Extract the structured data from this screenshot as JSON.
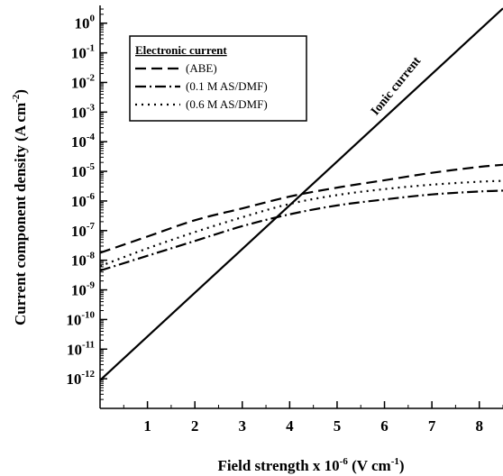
{
  "chart_data": {
    "type": "line",
    "xlabel": {
      "base": "Field strength x 10",
      "exp": "-6",
      "unit": " (V cm",
      "unit_exp": "-1",
      "close": ")"
    },
    "ylabel": {
      "base": "Current component density (A cm",
      "exp": "-2",
      "close": ")"
    },
    "x_ticks": [
      1,
      2,
      3,
      4,
      5,
      6,
      7,
      8
    ],
    "y_ticks": [
      {
        "base": "10",
        "exp": "0",
        "value": 0
      },
      {
        "base": "10",
        "exp": "-1",
        "value": -1
      },
      {
        "base": "10",
        "exp": "-2",
        "value": -2
      },
      {
        "base": "10",
        "exp": "-3",
        "value": -3
      },
      {
        "base": "10",
        "exp": "-4",
        "value": -4
      },
      {
        "base": "10",
        "exp": "-5",
        "value": -5
      },
      {
        "base": "10",
        "exp": "-6",
        "value": -6
      },
      {
        "base": "10",
        "exp": "-7",
        "value": -7
      },
      {
        "base": "10",
        "exp": "-8",
        "value": -8
      },
      {
        "base": "10",
        "exp": "-9",
        "value": -9
      },
      {
        "base": "10",
        "exp": "-10",
        "value": -10
      },
      {
        "base": "10",
        "exp": "-11",
        "value": -11
      },
      {
        "base": "10",
        "exp": "-12",
        "value": -12
      }
    ],
    "xlim": [
      0,
      8.5
    ],
    "ylim_log10": [
      -13,
      0.6
    ],
    "yscale": "log",
    "legend": {
      "title": "Electronic current",
      "placement": "top-left"
    },
    "series": [
      {
        "name": "(ABE)",
        "dash": "12,6",
        "x": [
          0,
          1,
          2,
          3,
          4,
          5,
          6,
          7,
          8,
          8.5
        ],
        "log10_y": [
          -7.75,
          -7.2,
          -6.65,
          -6.25,
          -5.85,
          -5.55,
          -5.3,
          -5.05,
          -4.85,
          -4.78
        ]
      },
      {
        "name": "(0.1 M AS/DMF)",
        "dash": "12,4,2,4",
        "x": [
          0,
          1,
          2,
          3,
          4,
          5,
          6,
          7,
          8,
          8.5
        ],
        "log10_y": [
          -8.35,
          -7.85,
          -7.35,
          -6.85,
          -6.45,
          -6.15,
          -5.95,
          -5.78,
          -5.68,
          -5.65
        ]
      },
      {
        "name": "(0.6 M AS/DMF)",
        "dash": "2,5",
        "x": [
          0,
          1,
          2,
          3,
          4,
          5,
          6,
          7,
          8,
          8.5
        ],
        "log10_y": [
          -8.2,
          -7.6,
          -7.05,
          -6.55,
          -6.1,
          -5.8,
          -5.6,
          -5.45,
          -5.35,
          -5.32
        ]
      },
      {
        "name": "Ionic current",
        "dash": "",
        "x": [
          0,
          8.5
        ],
        "log10_y": [
          -12.05,
          0.5
        ]
      }
    ],
    "annotations": [
      {
        "text": "Ionic current",
        "x": 6.3,
        "log10_y": -2.2,
        "angle": -51
      }
    ]
  }
}
